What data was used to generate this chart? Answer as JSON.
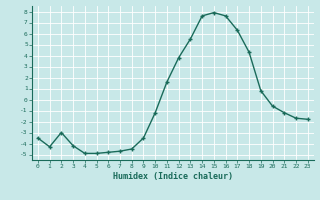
{
  "x": [
    0,
    1,
    2,
    3,
    4,
    5,
    6,
    7,
    8,
    9,
    10,
    11,
    12,
    13,
    14,
    15,
    16,
    17,
    18,
    19,
    20,
    21,
    22,
    23
  ],
  "y": [
    -3.5,
    -4.3,
    -3.0,
    -4.2,
    -4.9,
    -4.9,
    -4.8,
    -4.7,
    -4.5,
    -3.5,
    -1.2,
    1.6,
    3.8,
    5.5,
    7.6,
    7.9,
    7.6,
    6.3,
    4.3,
    0.8,
    -0.6,
    -1.2,
    -1.7,
    -1.8
  ],
  "xlabel": "Humidex (Indice chaleur)",
  "ylim": [
    -5.5,
    8.5
  ],
  "xlim": [
    -0.5,
    23.5
  ],
  "line_color": "#1a6b5a",
  "marker_color": "#1a6b5a",
  "bg_color": "#c8e8e8",
  "grid_color": "#ffffff",
  "tick_labels_x": [
    "0",
    "1",
    "2",
    "3",
    "4",
    "5",
    "6",
    "7",
    "8",
    "9",
    "10",
    "11",
    "12",
    "13",
    "14",
    "15",
    "16",
    "17",
    "18",
    "19",
    "20",
    "21",
    "22",
    "23"
  ],
  "tick_labels_y": [
    "-5",
    "-4",
    "-3",
    "-2",
    "-1",
    "0",
    "1",
    "2",
    "3",
    "4",
    "5",
    "6",
    "7",
    "8"
  ],
  "yticks": [
    -5,
    -4,
    -3,
    -2,
    -1,
    0,
    1,
    2,
    3,
    4,
    5,
    6,
    7,
    8
  ],
  "xticks": [
    0,
    1,
    2,
    3,
    4,
    5,
    6,
    7,
    8,
    9,
    10,
    11,
    12,
    13,
    14,
    15,
    16,
    17,
    18,
    19,
    20,
    21,
    22,
    23
  ]
}
